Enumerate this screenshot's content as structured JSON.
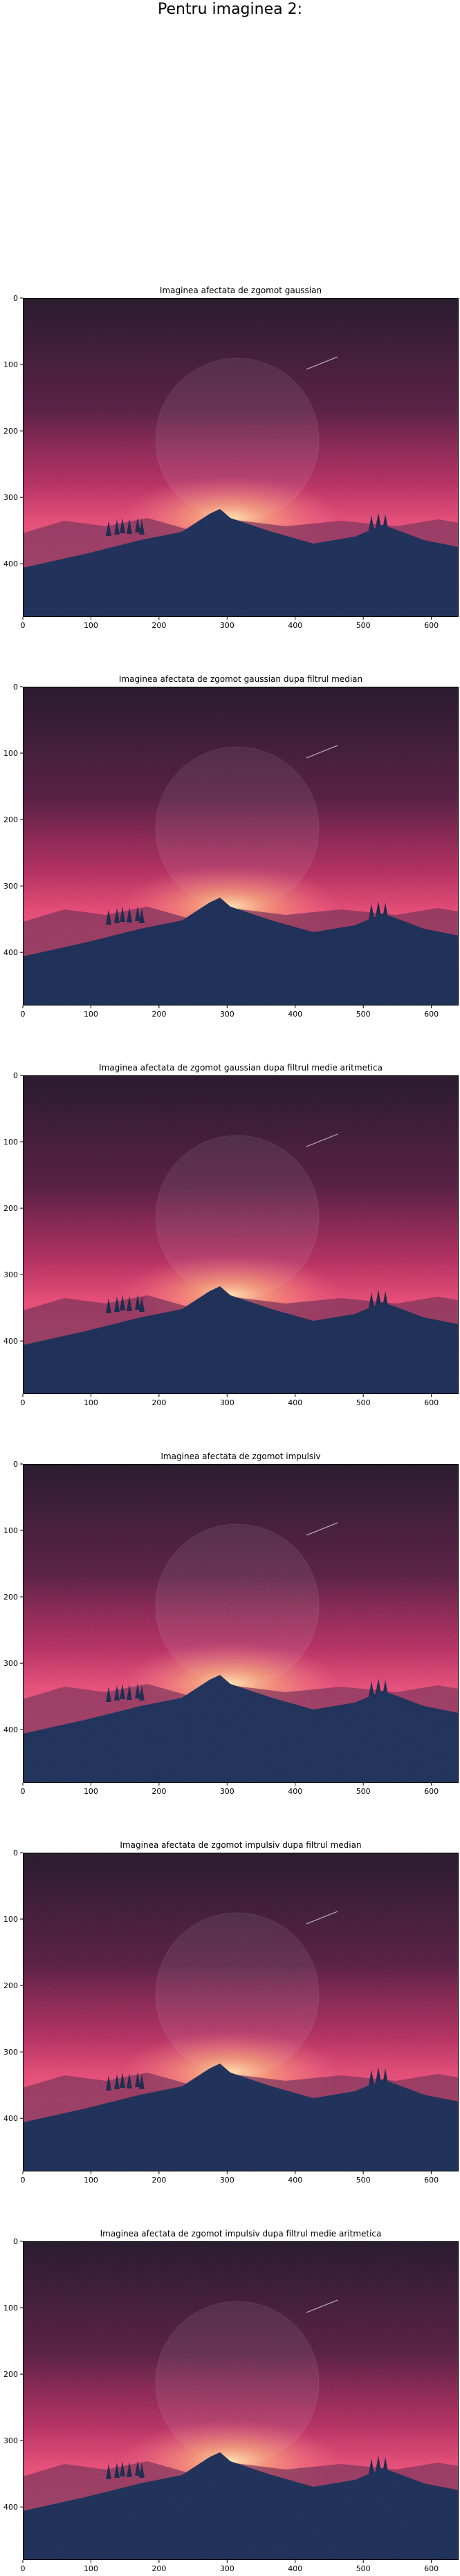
{
  "suptitle": "Pentru imaginea 2:",
  "chart_data": [
    {
      "type": "image",
      "title": "Imaginea afectata de zgomot gaussian",
      "noise": "gaussian",
      "xticks": [
        0,
        100,
        200,
        300,
        400,
        500,
        600
      ],
      "yticks": [
        0,
        100,
        200,
        300,
        400
      ],
      "xlim": [
        0,
        640
      ],
      "ylim": [
        0,
        480
      ]
    },
    {
      "type": "image",
      "title": "Imaginea afectata de zgomot gaussian dupa filtrul median",
      "noise": "gaussian-median",
      "xticks": [
        0,
        100,
        200,
        300,
        400,
        500,
        600
      ],
      "yticks": [
        0,
        100,
        200,
        300,
        400
      ],
      "xlim": [
        0,
        640
      ],
      "ylim": [
        0,
        480
      ]
    },
    {
      "type": "image",
      "title": "Imaginea afectata de zgomot gaussian dupa filtrul medie aritmetica",
      "noise": "gaussian-mean",
      "xticks": [
        0,
        100,
        200,
        300,
        400,
        500,
        600
      ],
      "yticks": [
        0,
        100,
        200,
        300,
        400
      ],
      "xlim": [
        0,
        640
      ],
      "ylim": [
        0,
        480
      ]
    },
    {
      "type": "image",
      "title": "Imaginea afectata de zgomot impulsiv",
      "noise": "impulse",
      "xticks": [
        0,
        100,
        200,
        300,
        400,
        500,
        600
      ],
      "yticks": [
        0,
        100,
        200,
        300,
        400
      ],
      "xlim": [
        0,
        640
      ],
      "ylim": [
        0,
        480
      ]
    },
    {
      "type": "image",
      "title": "Imaginea afectata de zgomot impulsiv dupa filtrul median",
      "noise": "impulse-median",
      "xticks": [
        0,
        100,
        200,
        300,
        400,
        500,
        600
      ],
      "yticks": [
        0,
        100,
        200,
        300,
        400
      ],
      "xlim": [
        0,
        640
      ],
      "ylim": [
        0,
        480
      ]
    },
    {
      "type": "image",
      "title": "Imaginea afectata de zgomot impulsiv dupa filtrul medie aritmetica",
      "noise": "impulse-mean",
      "xticks": [
        0,
        100,
        200,
        300,
        400,
        500,
        600
      ],
      "yticks": [
        0,
        100,
        200,
        300,
        400
      ],
      "xlim": [
        0,
        640
      ],
      "ylim": [
        0,
        480
      ]
    }
  ]
}
